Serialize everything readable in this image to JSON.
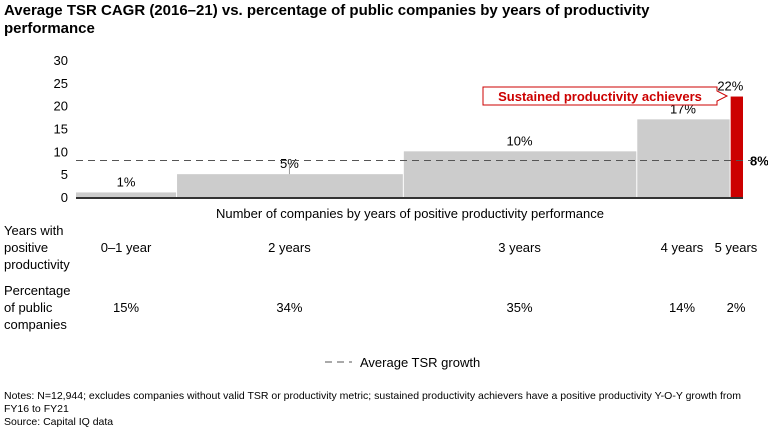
{
  "chart_data": {
    "type": "bar",
    "variable_width": true,
    "title": "Average TSR CAGR (2016–21) vs. percentage of public companies by years of productivity performance",
    "xlabel": "Number of companies by years of positive productivity performance",
    "ylim": [
      0,
      30
    ],
    "yticks": [
      "0",
      "5",
      "10",
      "15",
      "20",
      "25",
      "30"
    ],
    "row_label_years": [
      "Years with",
      "positive",
      "productivity"
    ],
    "row_label_pct": [
      "Percentage",
      "of public",
      "companies"
    ],
    "categories": [
      "0–1 year",
      "2 years",
      "3 years",
      "4 years",
      "5 years"
    ],
    "values": [
      1,
      5,
      10,
      17,
      22
    ],
    "value_labels": [
      "1%",
      "5%",
      "10%",
      "17%",
      "22%"
    ],
    "widths_pct": [
      15,
      34,
      35,
      14,
      2
    ],
    "width_labels": [
      "15%",
      "34%",
      "35%",
      "14%",
      "2%"
    ],
    "reference_line": {
      "value": 8,
      "label": "8%",
      "legend": "Average TSR growth"
    },
    "callout": "Sustained productivity achievers",
    "colors": {
      "bar": "#cccccc",
      "highlight": "#cc0000",
      "line": "#555555"
    },
    "grid": false,
    "legend_placement": "bottom-center"
  },
  "notes": "Notes: N=12,944; excludes companies without valid TSR or productivity metric; sustained productivity achievers have a positive productivity Y-O-Y growth from FY16 to FY21",
  "source": "Source: Capital IQ data"
}
